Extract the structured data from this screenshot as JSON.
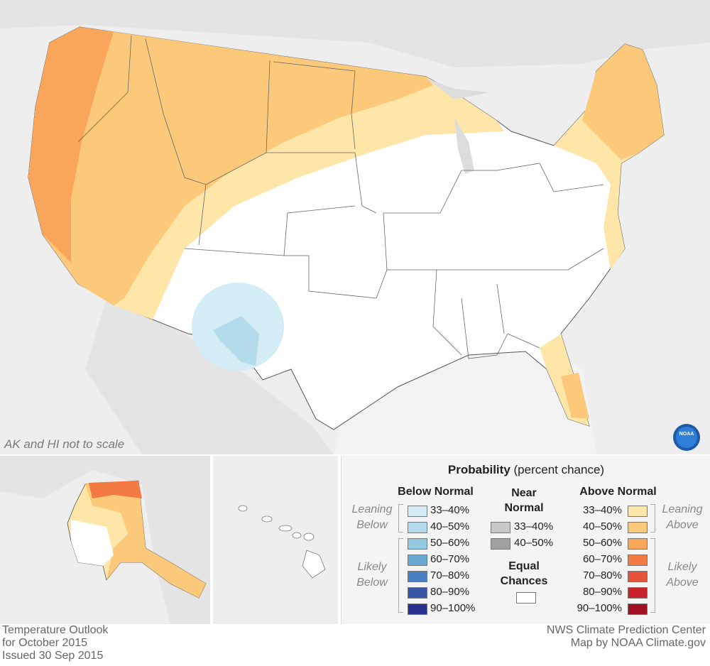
{
  "map": {
    "note": "AK and HI not to scale",
    "logo": "NOAA"
  },
  "legend": {
    "title_bold": "Probability",
    "title_rest": " (percent chance)",
    "below": {
      "heading": "Below Normal",
      "leaning": "Leaning Below",
      "likely": "Likely Below",
      "items": [
        {
          "label": "33–40%",
          "color": "#d4ecf5"
        },
        {
          "label": "40–50%",
          "color": "#b3dbec"
        },
        {
          "label": "50–60%",
          "color": "#92cae2"
        },
        {
          "label": "60–70%",
          "color": "#6aa9d4"
        },
        {
          "label": "70–80%",
          "color": "#4a7fc3"
        },
        {
          "label": "80–90%",
          "color": "#3955a8"
        },
        {
          "label": "90–100%",
          "color": "#2a3090"
        }
      ]
    },
    "near": {
      "heading_line1": "Near",
      "heading_line2": "Normal",
      "items": [
        {
          "label": "33–40%",
          "color": "#c8c8c8"
        },
        {
          "label": "40–50%",
          "color": "#a0a0a0"
        }
      ],
      "equal_line1": "Equal",
      "equal_line2": "Chances",
      "equal_color": "#ffffff"
    },
    "above": {
      "heading": "Above Normal",
      "leaning": "Leaning Above",
      "likely": "Likely Above",
      "items": [
        {
          "label": "33–40%",
          "color": "#fde6a8"
        },
        {
          "label": "40–50%",
          "color": "#fcc879"
        },
        {
          "label": "50–60%",
          "color": "#f9a55a"
        },
        {
          "label": "60–70%",
          "color": "#f47a44"
        },
        {
          "label": "70–80%",
          "color": "#e6523a"
        },
        {
          "label": "80–90%",
          "color": "#c9242b"
        },
        {
          "label": "90–100%",
          "color": "#a00f22"
        }
      ]
    }
  },
  "footer": {
    "left_line1": "Temperature Outlook",
    "left_line2": "for October 2015",
    "left_line3": "Issued 30 Sep 2015",
    "right_line1": "NWS Climate Prediction Center",
    "right_line2": "Map by NOAA Climate.gov"
  }
}
